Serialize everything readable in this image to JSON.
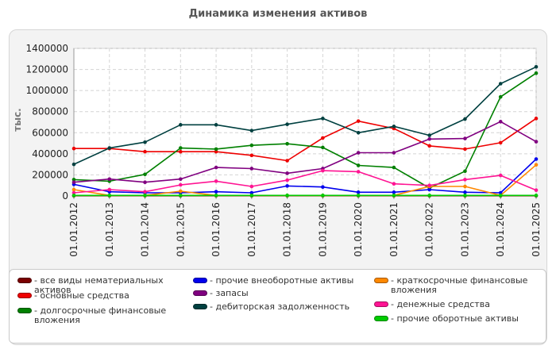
{
  "chart_data": {
    "type": "line",
    "title": "Динамика изменения активов",
    "ylabel": "тыс.",
    "xlabel": "",
    "ylim": [
      0,
      1400000
    ],
    "yticks": [
      0,
      200000,
      400000,
      600000,
      800000,
      1000000,
      1200000,
      1400000
    ],
    "grid": true,
    "legend_position": "bottom",
    "categories": [
      "01.01.2012",
      "01.01.2013",
      "01.01.2014",
      "01.01.2015",
      "01.01.2016",
      "01.01.2017",
      "01.01.2018",
      "01.01.2019",
      "01.01.2020",
      "01.01.2021",
      "01.01.2022",
      "01.01.2023",
      "01.01.2024",
      "01.01.2025"
    ],
    "series": [
      {
        "name": "- все виды нематериальных активов",
        "color": "#7a0000",
        "values": [
          2000,
          2000,
          2000,
          2000,
          2000,
          2000,
          2000,
          2000,
          2000,
          2000,
          2000,
          2000,
          2000,
          2000
        ]
      },
      {
        "name": "- основные средства",
        "color": "#ee0000",
        "values": [
          450000,
          450000,
          420000,
          420000,
          420000,
          385000,
          335000,
          550000,
          710000,
          640000,
          475000,
          445000,
          505000,
          735000
        ]
      },
      {
        "name": "- долгосрочные финансовые вложения",
        "color": "#008000",
        "values": [
          155000,
          140000,
          205000,
          455000,
          445000,
          480000,
          495000,
          460000,
          290000,
          270000,
          75000,
          235000,
          940000,
          1165000
        ]
      },
      {
        "name": "- прочие внеоборотные активы",
        "color": "#0000ee",
        "values": [
          110000,
          40000,
          30000,
          30000,
          40000,
          30000,
          95000,
          85000,
          35000,
          35000,
          60000,
          35000,
          30000,
          350000
        ]
      },
      {
        "name": "- запасы",
        "color": "#800080",
        "values": [
          130000,
          160000,
          130000,
          160000,
          270000,
          260000,
          215000,
          260000,
          410000,
          410000,
          540000,
          545000,
          705000,
          515000
        ]
      },
      {
        "name": "- дебиторская задолженность",
        "color": "#004040",
        "values": [
          300000,
          455000,
          510000,
          675000,
          675000,
          620000,
          680000,
          735000,
          600000,
          660000,
          575000,
          730000,
          1065000,
          1225000
        ]
      },
      {
        "name": "- краткосрочные финансовые вложения",
        "color": "#ff8800",
        "values": [
          60000,
          5000,
          5000,
          45000,
          5000,
          5000,
          5000,
          5000,
          5000,
          5000,
          90000,
          90000,
          5000,
          295000
        ]
      },
      {
        "name": "- денежные средства",
        "color": "#ff1493",
        "values": [
          30000,
          60000,
          40000,
          105000,
          140000,
          90000,
          150000,
          240000,
          230000,
          115000,
          100000,
          155000,
          195000,
          55000
        ]
      },
      {
        "name": "- прочие оборотные активы",
        "color": "#00cc00",
        "values": [
          5000,
          5000,
          5000,
          5000,
          5000,
          5000,
          5000,
          5000,
          5000,
          5000,
          5000,
          5000,
          5000,
          5000
        ]
      }
    ]
  }
}
